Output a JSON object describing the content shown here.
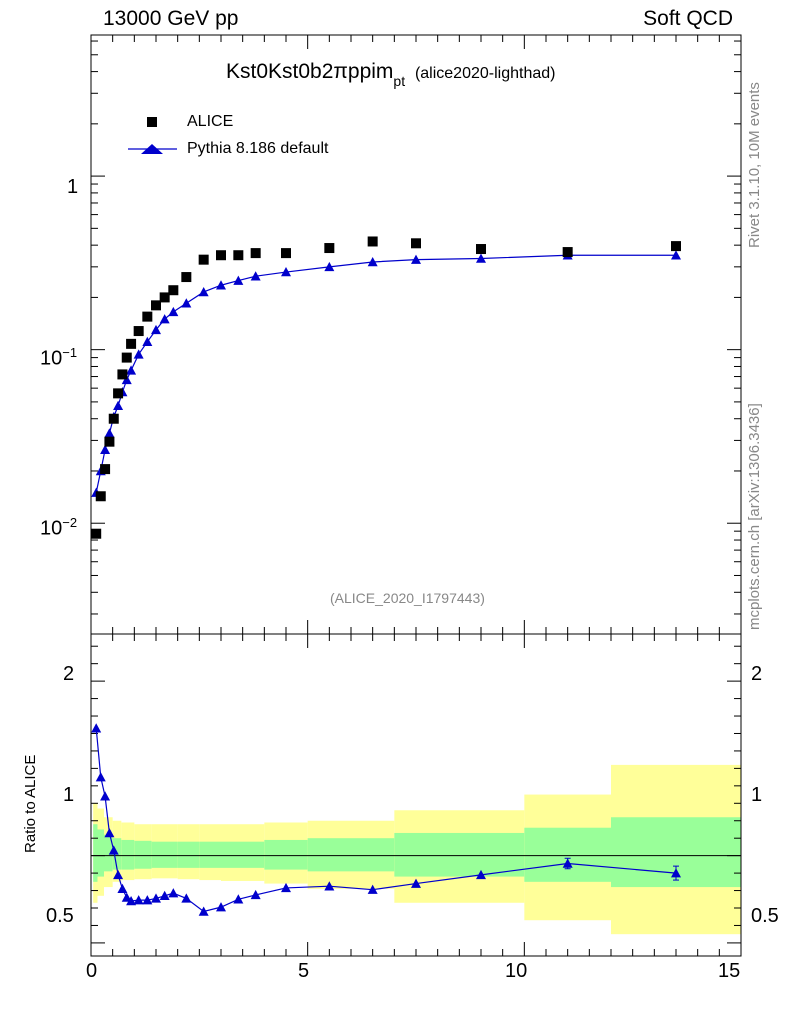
{
  "header": {
    "left": "13000 GeV pp",
    "right": "Soft QCD",
    "title_main": "Kst0Kst0b2πppim",
    "title_sub": "pt",
    "title_tag": "(alice2020-lighthad)",
    "watermark": "(ALICE_2020_I1797443)",
    "side_top": "Rivet 3.1.10,  10M events",
    "side_bottom": "mcplots.cern.ch [arXiv:1306.3436]"
  },
  "legend": {
    "data_label": "ALICE",
    "mc_label": "Pythia 8.186 default"
  },
  "colors": {
    "data": "#000000",
    "mc": "#0000cc",
    "band_inner": "#99ff99",
    "band_outer": "#ffff99"
  },
  "chart_data": [
    {
      "type": "scatter",
      "title": "Kst0Kst0b2πppim pt",
      "yscale": "log",
      "xlim": [
        0,
        15
      ],
      "ylim": [
        0.0023,
        6.5
      ],
      "y_ticks": [
        {
          "value": 0.01,
          "base": "10",
          "exp": "−2"
        },
        {
          "value": 0.1,
          "base": "10",
          "exp": "−1"
        },
        {
          "value": 1,
          "base": "1",
          "exp": ""
        }
      ],
      "series": [
        {
          "name": "ALICE",
          "x": [
            0.12,
            0.225,
            0.325,
            0.425,
            0.525,
            0.625,
            0.725,
            0.825,
            0.925,
            1.1,
            1.3,
            1.5,
            1.7,
            1.9,
            2.2,
            2.6,
            3.0,
            3.4,
            3.8,
            4.5,
            5.5,
            6.5,
            7.5,
            9.0,
            11.0,
            13.5
          ],
          "values": [
            0.0087,
            0.0143,
            0.0205,
            0.0295,
            0.04,
            0.056,
            0.072,
            0.09,
            0.108,
            0.128,
            0.155,
            0.18,
            0.2,
            0.22,
            0.262,
            0.33,
            0.35,
            0.35,
            0.36,
            0.36,
            0.385,
            0.42,
            0.41,
            0.38,
            0.365,
            0.395
          ]
        },
        {
          "name": "Pythia 8.186 default",
          "x": [
            0.12,
            0.225,
            0.325,
            0.425,
            0.525,
            0.625,
            0.725,
            0.825,
            0.925,
            1.1,
            1.3,
            1.5,
            1.7,
            1.9,
            2.2,
            2.6,
            3.0,
            3.4,
            3.8,
            4.5,
            5.5,
            6.5,
            7.5,
            9.0,
            11.0,
            13.5
          ],
          "values": [
            0.015,
            0.02,
            0.0265,
            0.033,
            0.041,
            0.0475,
            0.057,
            0.067,
            0.076,
            0.094,
            0.111,
            0.13,
            0.15,
            0.165,
            0.185,
            0.215,
            0.235,
            0.25,
            0.265,
            0.28,
            0.3,
            0.32,
            0.33,
            0.335,
            0.35,
            0.35
          ]
        }
      ]
    },
    {
      "type": "line",
      "ylabel": "Ratio to ALICE",
      "xlim": [
        0,
        15
      ],
      "ylim": [
        0.425,
        2.27
      ],
      "x_ticks": [
        0,
        5,
        10,
        15
      ],
      "y_ticks": [
        0.5,
        1,
        2
      ],
      "reference_line": 1,
      "series": [
        {
          "name": "Pythia 8.186 default / ALICE",
          "x": [
            0.12,
            0.225,
            0.325,
            0.425,
            0.525,
            0.625,
            0.725,
            0.825,
            0.925,
            1.1,
            1.3,
            1.5,
            1.7,
            1.9,
            2.2,
            2.6,
            3.0,
            3.4,
            3.8,
            4.5,
            5.5,
            6.5,
            7.5,
            9.0,
            11.0,
            13.5
          ],
          "values": [
            1.73,
            1.45,
            1.34,
            1.13,
            1.03,
            0.89,
            0.81,
            0.76,
            0.74,
            0.745,
            0.745,
            0.755,
            0.77,
            0.785,
            0.755,
            0.68,
            0.705,
            0.75,
            0.775,
            0.815,
            0.825,
            0.805,
            0.84,
            0.89,
            0.955,
            0.9
          ],
          "err": [
            0,
            0,
            0,
            0,
            0,
            0,
            0,
            0,
            0,
            0,
            0,
            0,
            0,
            0,
            0,
            0,
            0,
            0,
            0,
            0,
            0,
            0,
            0,
            0,
            0.03,
            0.04
          ]
        }
      ],
      "uncertainty_bands": {
        "edges": [
          0.05,
          0.15,
          0.3,
          0.5,
          0.7,
          1.0,
          1.4,
          2.0,
          2.5,
          3.0,
          4.0,
          5.0,
          7.0,
          10.0,
          12.0,
          15.0
        ],
        "inner_lo": [
          0.85,
          0.88,
          0.91,
          0.92,
          0.92,
          0.925,
          0.93,
          0.93,
          0.93,
          0.93,
          0.92,
          0.91,
          0.88,
          0.85,
          0.82
        ],
        "inner_hi": [
          1.18,
          1.15,
          1.12,
          1.1,
          1.09,
          1.085,
          1.08,
          1.08,
          1.08,
          1.08,
          1.09,
          1.1,
          1.13,
          1.16,
          1.22
        ],
        "outer_lo": [
          0.73,
          0.77,
          0.82,
          0.85,
          0.86,
          0.865,
          0.87,
          0.865,
          0.86,
          0.855,
          0.84,
          0.81,
          0.73,
          0.63,
          0.55
        ],
        "outer_hi": [
          1.3,
          1.27,
          1.22,
          1.2,
          1.19,
          1.18,
          1.18,
          1.18,
          1.18,
          1.18,
          1.19,
          1.2,
          1.26,
          1.35,
          1.52
        ]
      }
    }
  ]
}
